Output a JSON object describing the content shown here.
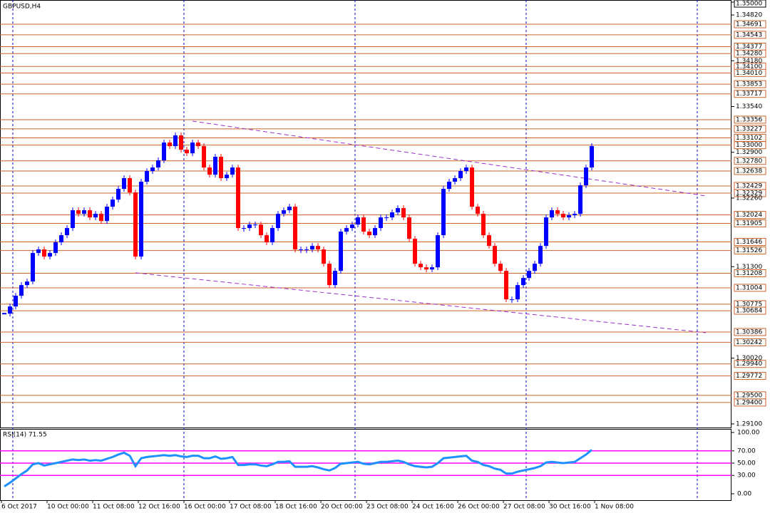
{
  "chart_data": {
    "type": "candlestick",
    "title": "GBPUSD,H4",
    "closes": [
      1.30643,
      1.30743,
      1.30893,
      1.31042,
      1.31092,
      1.31491,
      1.31541,
      1.31441,
      1.31491,
      1.3164,
      1.3174,
      1.3184,
      1.32089,
      1.32039,
      1.32089,
      1.31989,
      1.32039,
      1.31939,
      1.32139,
      1.32238,
      1.32388,
      1.32538,
      1.32338,
      1.31441,
      1.32488,
      1.32637,
      1.32687,
      1.32787,
      1.33036,
      1.32986,
      1.33136,
      1.32936,
      1.32886,
      1.33036,
      1.32986,
      1.32687,
      1.32587,
      1.32837,
      1.32538,
      1.32587,
      1.32687,
      1.3184,
      1.3184,
      1.31889,
      1.31889,
      1.3174,
      1.3164,
      1.3184,
      1.32039,
      1.32089,
      1.32139,
      1.31541,
      1.31541,
      1.31541,
      1.3159,
      1.31541,
      1.31341,
      1.31042,
      1.31241,
      1.3179,
      1.3184,
      1.31889,
      1.31989,
      1.3179,
      1.3174,
      1.3184,
      1.31989,
      1.31989,
      1.32059,
      1.32119,
      1.31989,
      1.3169,
      1.31341,
      1.31291,
      1.31261,
      1.31291,
      1.3174,
      1.32388,
      1.32488,
      1.32538,
      1.32637,
      1.32687,
      1.32139,
      1.32039,
      1.3174,
      1.3159,
      1.31341,
      1.31241,
      1.30843,
      1.30843,
      1.31042,
      1.31142,
      1.31241,
      1.31341,
      1.3159,
      1.31989,
      1.32089,
      1.32039,
      1.31989,
      1.32019,
      1.32039,
      1.32438,
      1.32687,
      1.32986
    ],
    "up_color": "#0000ff",
    "down_color": "#ff0000",
    "ylim": [
      1.291,
      1.35
    ],
    "yticks": [
      {
        "value": 1.35,
        "label": "1.35000"
      },
      {
        "value": 1.3482,
        "label": "1.34820"
      },
      {
        "value": 1.3418,
        "label": "1.34180"
      },
      {
        "value": 1.3354,
        "label": "1.33540"
      },
      {
        "value": 1.329,
        "label": "1.32900"
      },
      {
        "value": 1.3226,
        "label": "1.32260"
      },
      {
        "value": 1.313,
        "label": "1.31300"
      },
      {
        "value": 1.3002,
        "label": "1.30020"
      },
      {
        "value": 1.291,
        "label": "1.29100"
      }
    ],
    "levels": [
      {
        "value": 1.34691,
        "label": "1.34691"
      },
      {
        "value": 1.34543,
        "label": "1.34543"
      },
      {
        "value": 1.34377,
        "label": "1.34377"
      },
      {
        "value": 1.3428,
        "label": "1.34280"
      },
      {
        "value": 1.341,
        "label": "1.34100"
      },
      {
        "value": 1.3401,
        "label": "1.34010"
      },
      {
        "value": 1.33853,
        "label": "1.33853"
      },
      {
        "value": 1.33717,
        "label": "1.33717"
      },
      {
        "value": 1.33356,
        "label": "1.33356"
      },
      {
        "value": 1.33227,
        "label": "1.33227"
      },
      {
        "value": 1.33102,
        "label": "1.33102"
      },
      {
        "value": 1.33,
        "label": "1.33000"
      },
      {
        "value": 1.3278,
        "label": "1.32780"
      },
      {
        "value": 1.32638,
        "label": "1.32638"
      },
      {
        "value": 1.32429,
        "label": "1.32429"
      },
      {
        "value": 1.32329,
        "label": "1.32329"
      },
      {
        "value": 1.32024,
        "label": "1.32024"
      },
      {
        "value": 1.31905,
        "label": "1.31905"
      },
      {
        "value": 1.31646,
        "label": "1.31646"
      },
      {
        "value": 1.31526,
        "label": "1.31526"
      },
      {
        "value": 1.31208,
        "label": "1.31208"
      },
      {
        "value": 1.31004,
        "label": "1.31004"
      },
      {
        "value": 1.30775,
        "label": "1.30775"
      },
      {
        "value": 1.30684,
        "label": "1.30684"
      },
      {
        "value": 1.30386,
        "label": "1.30386"
      },
      {
        "value": 1.30242,
        "label": "1.30242"
      },
      {
        "value": 1.2994,
        "label": "1.29940"
      },
      {
        "value": 1.29772,
        "label": "1.29772"
      },
      {
        "value": 1.295,
        "label": "1.29500"
      },
      {
        "value": 1.294,
        "label": "1.29400"
      }
    ],
    "level_color": "#c8642a",
    "trendlines": [
      {
        "x": [
          33,
          123
        ],
        "y": [
          1.33336,
          1.3229
        ]
      },
      {
        "x": [
          23,
          123
        ],
        "y": [
          1.31214,
          1.30376
        ]
      }
    ],
    "trend_color": "#9932cc",
    "x_labels": [
      "6 Oct 2017",
      "10 Oct 00:00",
      "11 Oct 08:00",
      "12 Oct 16:00",
      "16 Oct 00:00",
      "17 Oct 08:00",
      "18 Oct 16:00",
      "20 Oct 00:00",
      "23 Oct 08:00",
      "24 Oct 16:00",
      "26 Oct 00:00",
      "27 Oct 08:00",
      "30 Oct 16:00",
      "1 Nov 08:00"
    ],
    "rsi": {
      "label": "RSI(14) 71.55",
      "color": "#1e90ff",
      "values": [
        12,
        18,
        25,
        32,
        38,
        48,
        50,
        46,
        48,
        50,
        52,
        54,
        56,
        55,
        56,
        54,
        55,
        54,
        57,
        60,
        64,
        67,
        62,
        45,
        58,
        60,
        61,
        62,
        63,
        62,
        63,
        61,
        60,
        62,
        62,
        58,
        58,
        61,
        57,
        58,
        60,
        47,
        47,
        48,
        48,
        46,
        45,
        48,
        52,
        52,
        53,
        44,
        44,
        44,
        45,
        43,
        40,
        38,
        42,
        49,
        50,
        51,
        52,
        49,
        48,
        50,
        52,
        52,
        53,
        54,
        52,
        48,
        45,
        44,
        43,
        44,
        50,
        58,
        59,
        60,
        61,
        62,
        54,
        52,
        47,
        45,
        41,
        39,
        33,
        33,
        36,
        38,
        40,
        42,
        45,
        51,
        52,
        51,
        50,
        51,
        52,
        58,
        64,
        71.55
      ],
      "ylim": [
        0,
        100
      ],
      "yticks": [
        {
          "value": 100,
          "label": "100.00"
        },
        {
          "value": 70,
          "label": "70.00"
        },
        {
          "value": 50,
          "label": "50.00"
        },
        {
          "value": 30,
          "label": "30.00"
        },
        {
          "value": 0,
          "label": "0.00"
        }
      ],
      "levels": [
        70,
        50,
        30
      ],
      "level_color": "#ff00ff"
    }
  }
}
